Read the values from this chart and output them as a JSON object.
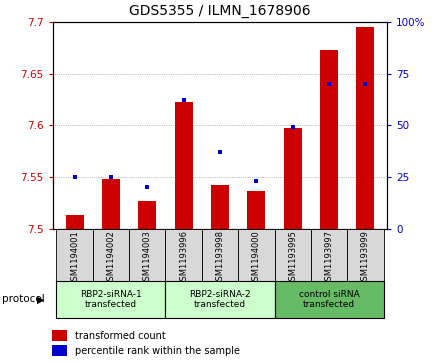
{
  "title": "GDS5355 / ILMN_1678906",
  "samples": [
    "GSM1194001",
    "GSM1194002",
    "GSM1194003",
    "GSM1193996",
    "GSM1193998",
    "GSM1194000",
    "GSM1193995",
    "GSM1193997",
    "GSM1193999"
  ],
  "red_values": [
    7.513,
    7.548,
    7.527,
    7.622,
    7.542,
    7.536,
    7.597,
    7.673,
    7.695
  ],
  "blue_values": [
    25.0,
    25.0,
    20.0,
    62.0,
    37.0,
    23.0,
    49.0,
    70.0,
    70.0
  ],
  "ylim_left": [
    7.5,
    7.7
  ],
  "ylim_right": [
    0,
    100
  ],
  "yticks_left": [
    7.5,
    7.55,
    7.6,
    7.65,
    7.7
  ],
  "yticks_right": [
    0,
    25,
    50,
    75,
    100
  ],
  "groups": [
    {
      "label": "RBP2-siRNA-1\ntransfected",
      "start": 0,
      "end": 3,
      "color": "#ccffcc"
    },
    {
      "label": "RBP2-siRNA-2\ntransfected",
      "start": 3,
      "end": 6,
      "color": "#ccffcc"
    },
    {
      "label": "control siRNA\ntransfected",
      "start": 6,
      "end": 9,
      "color": "#66bb66"
    }
  ],
  "protocol_label": "protocol",
  "legend_red": "transformed count",
  "legend_blue": "percentile rank within the sample",
  "bar_color_red": "#cc0000",
  "bar_color_blue": "#0000cc",
  "bg_color": "#d8d8d8",
  "plot_bg": "#ffffff",
  "baseline": 7.5,
  "red_bar_width": 0.5
}
